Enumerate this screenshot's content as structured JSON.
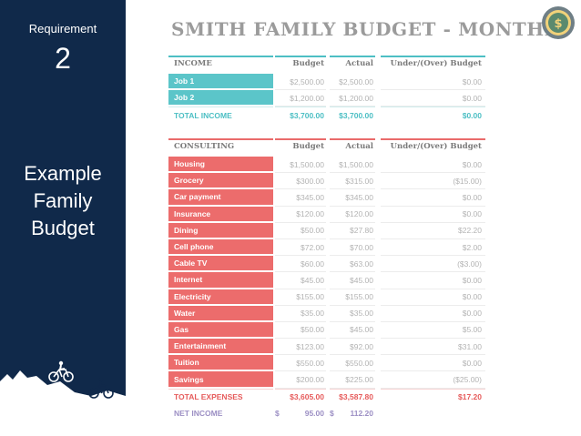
{
  "sidebar": {
    "label": "Requirement",
    "number": "2",
    "subtitle_lines": [
      "Example",
      "Family",
      "Budget"
    ]
  },
  "title": "SMITH FAMILY BUDGET - MONTHLY",
  "income": {
    "header": {
      "section": "INCOME",
      "budget": "Budget",
      "actual": "Actual",
      "diff": "Under/(Over) Budget"
    },
    "rows": [
      {
        "name": "Job 1",
        "budget": "$2,500.00",
        "actual": "$2,500.00",
        "diff": "$0.00"
      },
      {
        "name": "Job 2",
        "budget": "$1,200.00",
        "actual": "$1,200.00",
        "diff": "$0.00"
      }
    ],
    "total": {
      "name": "TOTAL INCOME",
      "budget": "$3,700.00",
      "actual": "$3,700.00",
      "diff": "$0.00"
    }
  },
  "expenses": {
    "header": {
      "section": "CONSULTING",
      "budget": "Budget",
      "actual": "Actual",
      "diff": "Under/(Over) Budget"
    },
    "rows": [
      {
        "name": "Housing",
        "budget": "$1,500.00",
        "actual": "$1,500.00",
        "diff": "$0.00"
      },
      {
        "name": "Grocery",
        "budget": "$300.00",
        "actual": "$315.00",
        "diff": "($15.00)"
      },
      {
        "name": "Car payment",
        "budget": "$345.00",
        "actual": "$345.00",
        "diff": "$0.00"
      },
      {
        "name": "Insurance",
        "budget": "$120.00",
        "actual": "$120.00",
        "diff": "$0.00"
      },
      {
        "name": "Dining",
        "budget": "$50.00",
        "actual": "$27.80",
        "diff": "$22.20"
      },
      {
        "name": "Cell phone",
        "budget": "$72.00",
        "actual": "$70.00",
        "diff": "$2.00"
      },
      {
        "name": "Cable TV",
        "budget": "$60.00",
        "actual": "$63.00",
        "diff": "($3.00)"
      },
      {
        "name": "Internet",
        "budget": "$45.00",
        "actual": "$45.00",
        "diff": "$0.00"
      },
      {
        "name": "Electricity",
        "budget": "$155.00",
        "actual": "$155.00",
        "diff": "$0.00"
      },
      {
        "name": "Water",
        "budget": "$35.00",
        "actual": "$35.00",
        "diff": "$0.00"
      },
      {
        "name": "Gas",
        "budget": "$50.00",
        "actual": "$45.00",
        "diff": "$5.00"
      },
      {
        "name": "Entertainment",
        "budget": "$123.00",
        "actual": "$92.00",
        "diff": "$31.00"
      },
      {
        "name": "Tuition",
        "budget": "$550.00",
        "actual": "$550.00",
        "diff": "$0.00"
      },
      {
        "name": "Savings",
        "budget": "$200.00",
        "actual": "$225.00",
        "diff": "($25.00)"
      }
    ],
    "total": {
      "name": "TOTAL EXPENSES",
      "budget": "$3,605.00",
      "actual": "$3,587.80",
      "diff": "$17.20"
    }
  },
  "net": {
    "name": "NET INCOME",
    "budget_currency": "$",
    "budget": "95.00",
    "actual_currency": "$",
    "actual": "112.20"
  },
  "colors": {
    "panel": "#10294a",
    "teal": "#5bc5c9",
    "red": "#ec6c6c",
    "net": "#9c8fc4",
    "title": "#9b9b9b"
  },
  "icons": {
    "seal": "dollar-seal-icon",
    "cyclists": "cyclist-icon"
  }
}
